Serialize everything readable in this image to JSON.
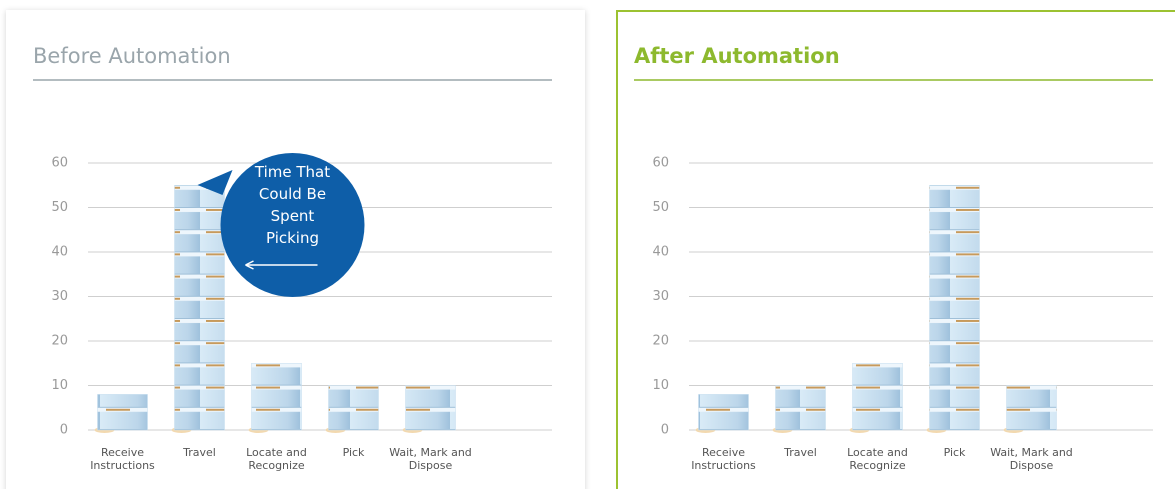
{
  "chart_data": [
    {
      "type": "bar",
      "title": "Before Automation",
      "title_color": "#9aa5ab",
      "categories": [
        "Receive Instructions",
        "Travel",
        "Locate and Recognize",
        "Pick",
        "Wait, Mark and Dispose"
      ],
      "values": [
        8,
        55,
        15,
        10,
        10
      ],
      "color": "#c6deef",
      "ylim": [
        0,
        60
      ],
      "yticks": [
        0,
        10,
        20,
        30,
        40,
        50,
        60
      ],
      "grid": true,
      "annotation": "Time That Could Be Spent Picking"
    },
    {
      "type": "bar",
      "title": "After Automation",
      "title_color": "#8db92e",
      "categories": [
        "Receive Instructions",
        "Travel",
        "Locate and Recognize",
        "Pick",
        "Wait, Mark and Dispose"
      ],
      "values": [
        8,
        10,
        15,
        55,
        10
      ],
      "color": "#c6deef",
      "ylim": [
        0,
        60
      ],
      "yticks": [
        0,
        10,
        20,
        30,
        40,
        50,
        60
      ],
      "grid": true
    }
  ]
}
